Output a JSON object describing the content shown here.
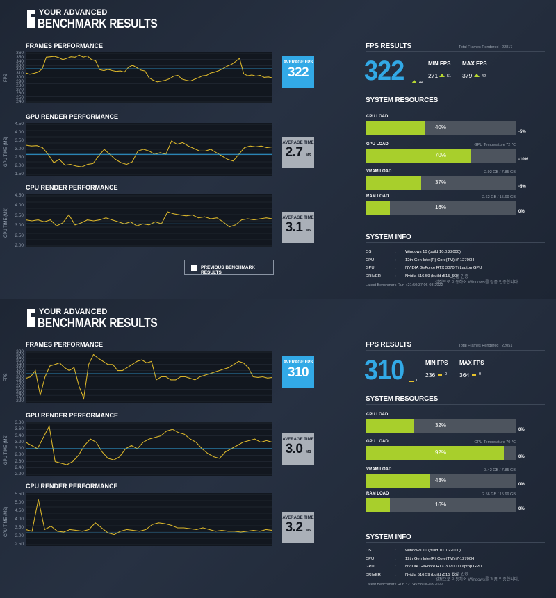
{
  "panels": [
    {
      "header": {
        "line1": "YOUR ADVANCED",
        "line2": "BENCHMARK RESULTS"
      },
      "frames": {
        "title": "FRAMES PERFORMANCE",
        "ylabel": "FPS",
        "ticks": [
          "360",
          "350",
          "340",
          "330",
          "320",
          "310",
          "300",
          "290",
          "280",
          "270",
          "260",
          "250",
          "240"
        ]
      },
      "gpu": {
        "title": "GPU RENDER PERFORMANCE",
        "ylabel": "GPU TIME (MS)",
        "ticks": [
          "4.50",
          "4.00",
          "3.50",
          "3.00",
          "2.50",
          "2.00",
          "1.50"
        ]
      },
      "cpu": {
        "title": "CPU RENDER PERFORMANCE",
        "ylabel": "CPU TIME (MS)",
        "ticks": [
          "4.50",
          "4.00",
          "3.50",
          "3.00",
          "2.50",
          "2.00"
        ]
      },
      "avg_fps": {
        "label": "AVERAGE FPS",
        "value": "322"
      },
      "avg_gpu": {
        "label": "AVERAGE TIME",
        "value": "2.7",
        "unit": "MS"
      },
      "avg_cpu": {
        "label": "AVERAGE TIME",
        "value": "3.1",
        "unit": "MS"
      },
      "prev_legend": "PREVIOUS BENCHMARK RESULTS",
      "fps_results": {
        "title": "FPS RESULTS",
        "total_frames": "Total Frames Rendered : 22817",
        "avg": "322",
        "avg_delta": "44",
        "min_label": "MIN FPS",
        "min": "271",
        "min_delta": "51",
        "max_label": "MAX FPS",
        "max": "379",
        "max_delta": "42"
      },
      "resources": {
        "title": "SYSTEM RESOURCES",
        "items": [
          {
            "label": "CPU LOAD",
            "pct": "40%",
            "fill": 0.4,
            "info": "",
            "delta": "-5%"
          },
          {
            "label": "GPU LOAD",
            "pct": "70%",
            "fill": 0.7,
            "info": "GPU Temperature 72 ℃",
            "delta": "-10%"
          },
          {
            "label": "VRAM LOAD",
            "pct": "37%",
            "fill": 0.37,
            "info": "2.92 GB / 7.85 GB",
            "delta": "-5%"
          },
          {
            "label": "RAM LOAD",
            "pct": "16%",
            "fill": 0.16,
            "info": "2.62 GB / 15.69 GB",
            "delta": "0%"
          }
        ]
      },
      "sysinfo": {
        "title": "SYSTEM INFO",
        "rows": [
          {
            "k": "OS",
            "v": "Windows 10 (build 10.0.22000)"
          },
          {
            "k": "CPU",
            "v": "12th Gen Intel(R) Core(TM) i7-12700H"
          },
          {
            "k": "GPU",
            "v": "NVIDIA GeForce RTX 3070 Ti Laptop GPU"
          },
          {
            "k": "DRIVER",
            "v": "Nvidia 516.59 (build r515_00)"
          }
        ],
        "latest_run": "Latest Benchmark Run : 21:50:37 06-08-2022",
        "watermark": "설정으로 이동하여 Windows를 정품 인증합니다.",
        "watermark_top": "정품 인증"
      }
    },
    {
      "header": {
        "line1": "YOUR ADVANCED",
        "line2": "BENCHMARK RESULTS"
      },
      "frames": {
        "title": "FRAMES PERFORMANCE",
        "ylabel": "FPS",
        "ticks": [
          "380",
          "370",
          "360",
          "350",
          "340",
          "330",
          "320",
          "310",
          "300",
          "290",
          "280",
          "270",
          "260",
          "250",
          "240",
          "230",
          "220"
        ]
      },
      "gpu": {
        "title": "GPU RENDER PERFORMANCE",
        "ylabel": "GPU TIME (MS)",
        "ticks": [
          "3.80",
          "3.60",
          "3.40",
          "3.20",
          "3.00",
          "2.80",
          "2.60",
          "2.40",
          "2.20"
        ]
      },
      "cpu": {
        "title": "CPU RENDER PERFORMANCE",
        "ylabel": "CPU TIME (MS)",
        "ticks": [
          "5.50",
          "5.00",
          "4.50",
          "4.00",
          "3.50",
          "3.00",
          "2.50"
        ]
      },
      "avg_fps": {
        "label": "AVERAGE FPS",
        "value": "310"
      },
      "avg_gpu": {
        "label": "AVERAGE TIME",
        "value": "3.0",
        "unit": "MS"
      },
      "avg_cpu": {
        "label": "AVERAGE TIME",
        "value": "3.2",
        "unit": "MS"
      },
      "fps_results": {
        "title": "FPS RESULTS",
        "total_frames": "Total Frames Rendered : 22051",
        "avg": "310",
        "avg_delta": "0",
        "min_label": "MIN FPS",
        "min": "236",
        "min_delta": "0",
        "max_label": "MAX FPS",
        "max": "364",
        "max_delta": "0"
      },
      "resources": {
        "title": "SYSTEM RESOURCES",
        "items": [
          {
            "label": "CPU LOAD",
            "pct": "32%",
            "fill": 0.32,
            "info": "",
            "delta": "0%"
          },
          {
            "label": "GPU LOAD",
            "pct": "92%",
            "fill": 0.92,
            "info": "GPU Temperature 70 ℃",
            "delta": "0%"
          },
          {
            "label": "VRAM LOAD",
            "pct": "43%",
            "fill": 0.43,
            "info": "3.42 GB / 7.85 GB",
            "delta": "0%"
          },
          {
            "label": "RAM LOAD",
            "pct": "16%",
            "fill": 0.16,
            "info": "2.56 GB / 15.69 GB",
            "delta": "0%"
          }
        ]
      },
      "sysinfo": {
        "title": "SYSTEM INFO",
        "rows": [
          {
            "k": "OS",
            "v": "Windows 10 (build 10.0.22000)"
          },
          {
            "k": "CPU",
            "v": "12th Gen Intel(R) Core(TM) i7-12700H"
          },
          {
            "k": "GPU",
            "v": "NVIDIA GeForce RTX 3070 Ti Laptop GPU"
          },
          {
            "k": "DRIVER",
            "v": "Nvidia 516.59 (build r515_00)"
          }
        ],
        "latest_run": "Latest Benchmark Run : 21:45:58 06-08-2022",
        "watermark": "설정으로 이동하여 Windows를 정품 인증합니다.",
        "watermark_top": "정품 인증"
      }
    }
  ],
  "chart_data": [
    {
      "type": "line",
      "title": "FRAMES PERFORMANCE",
      "ylabel": "FPS",
      "ylim": [
        240,
        360
      ],
      "series": [
        {
          "name": "current",
          "values": [
            312,
            309,
            311,
            314,
            322,
            351,
            352,
            353,
            350,
            345,
            348,
            352,
            351,
            356,
            351,
            354,
            345,
            342,
            320,
            318,
            321,
            318,
            316,
            317,
            314,
            326,
            331,
            325,
            319,
            317,
            300,
            294,
            290,
            292,
            294,
            298,
            304,
            306,
            297,
            294,
            292,
            296,
            300,
            305,
            306,
            312,
            314,
            318,
            323,
            329,
            333,
            340,
            348,
            310,
            305,
            307,
            304,
            306,
            301,
            302,
            300
          ]
        },
        {
          "name": "average",
          "values": [
            322
          ]
        }
      ]
    },
    {
      "type": "line",
      "title": "GPU RENDER PERFORMANCE",
      "ylabel": "GPU TIME (MS)",
      "ylim": [
        1.5,
        4.5
      ],
      "series": [
        {
          "name": "current",
          "values": [
            3.25,
            3.2,
            3.22,
            3.1,
            2.7,
            2.2,
            2.4,
            2.05,
            2.1,
            2.0,
            1.95,
            2.1,
            2.15,
            2.6,
            3.0,
            2.7,
            2.4,
            2.2,
            2.1,
            2.25,
            2.9,
            3.0,
            2.9,
            2.7,
            2.8,
            2.7,
            3.5,
            3.3,
            3.4,
            3.2,
            3.05,
            2.9,
            2.9,
            3.0,
            2.8,
            2.6,
            2.4,
            2.3,
            2.7,
            3.1,
            3.2,
            3.15,
            3.2,
            3.1,
            3.15
          ]
        },
        {
          "name": "average",
          "values": [
            2.7
          ]
        }
      ]
    },
    {
      "type": "line",
      "title": "CPU RENDER PERFORMANCE",
      "ylabel": "CPU TIME (MS)",
      "ylim": [
        2,
        4.5
      ],
      "series": [
        {
          "name": "current",
          "values": [
            3.3,
            3.25,
            3.3,
            3.2,
            3.3,
            3.0,
            3.15,
            3.55,
            3.05,
            3.15,
            3.3,
            3.25,
            3.3,
            3.4,
            3.3,
            3.2,
            3.1,
            3.2,
            3.0,
            3.1,
            3.05,
            3.2,
            3.1,
            3.7,
            3.6,
            3.55,
            3.5,
            3.55,
            3.4,
            3.45,
            3.35,
            3.4,
            3.2,
            2.95,
            3.05,
            3.3,
            3.35,
            3.3,
            3.35,
            3.4,
            3.35
          ]
        },
        {
          "name": "average",
          "values": [
            3.1
          ]
        }
      ]
    },
    {
      "type": "line",
      "title": "FRAMES PERFORMANCE",
      "ylabel": "FPS",
      "ylim": [
        220,
        380
      ],
      "series": [
        {
          "name": "current",
          "values": [
            295,
            300,
            320,
            240,
            300,
            335,
            340,
            345,
            330,
            320,
            330,
            270,
            230,
            340,
            372,
            360,
            350,
            340,
            340,
            320,
            320,
            330,
            340,
            350,
            355,
            345,
            350,
            290,
            300,
            300,
            290,
            290,
            300,
            300,
            295,
            290,
            300,
            305,
            310,
            315,
            320,
            325,
            330,
            340,
            350,
            345,
            330,
            300,
            298,
            300,
            296,
            298
          ]
        },
        {
          "name": "average",
          "values": [
            310
          ]
        }
      ]
    },
    {
      "type": "line",
      "title": "GPU RENDER PERFORMANCE",
      "ylabel": "GPU TIME (MS)",
      "ylim": [
        2.2,
        3.8
      ],
      "series": [
        {
          "name": "current",
          "values": [
            3.2,
            3.1,
            3.0,
            3.35,
            3.7,
            2.6,
            2.55,
            2.5,
            2.6,
            2.8,
            3.1,
            3.3,
            3.2,
            2.9,
            2.7,
            2.65,
            2.75,
            3.0,
            3.1,
            3.0,
            3.2,
            3.3,
            3.35,
            3.4,
            3.55,
            3.6,
            3.5,
            3.45,
            3.3,
            3.2,
            3.0,
            2.85,
            2.75,
            2.7,
            2.9,
            3.0,
            3.1,
            3.2,
            3.25,
            3.3,
            3.2,
            3.25,
            3.2
          ]
        },
        {
          "name": "average",
          "values": [
            3.0
          ]
        }
      ]
    },
    {
      "type": "line",
      "title": "CPU RENDER PERFORMANCE",
      "ylabel": "CPU TIME (MS)",
      "ylim": [
        2.5,
        5.5
      ],
      "series": [
        {
          "name": "current",
          "values": [
            3.4,
            3.3,
            5.2,
            3.4,
            3.6,
            3.3,
            3.25,
            3.4,
            3.35,
            3.3,
            3.4,
            3.8,
            3.5,
            3.2,
            3.1,
            3.3,
            3.4,
            3.35,
            3.3,
            3.4,
            3.7,
            3.8,
            3.75,
            3.65,
            3.5,
            3.5,
            3.45,
            3.4,
            3.5,
            3.4,
            3.3,
            3.35,
            3.3,
            3.3,
            3.25,
            3.3,
            3.35,
            3.3,
            3.4,
            3.35
          ]
        },
        {
          "name": "average",
          "values": [
            3.2
          ]
        }
      ]
    }
  ]
}
